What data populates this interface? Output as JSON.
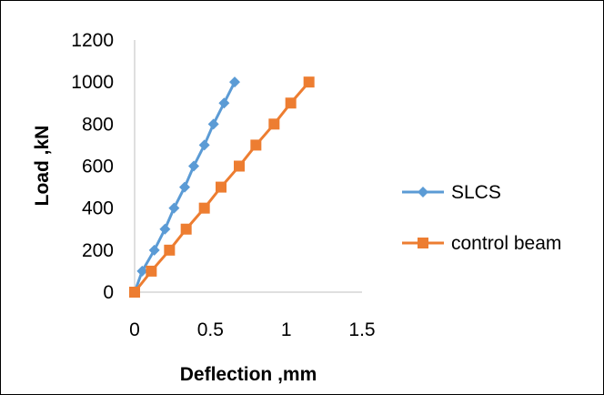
{
  "chart_data": {
    "type": "scatter",
    "xlabel": "Deflection ,mm",
    "ylabel": "Load ,kN",
    "xlim": [
      0,
      1.5
    ],
    "ylim": [
      0,
      1200
    ],
    "x_ticks": [
      "0",
      "0.5",
      "1",
      "1.5"
    ],
    "y_ticks": [
      "0",
      "200",
      "400",
      "600",
      "800",
      "1000",
      "1200"
    ],
    "grid": false,
    "legend_position": "right",
    "series": [
      {
        "name": "SLCS",
        "color": "#5B9BD5",
        "marker": "diamond",
        "x": [
          0,
          0.05,
          0.13,
          0.2,
          0.26,
          0.33,
          0.39,
          0.46,
          0.52,
          0.59,
          0.66
        ],
        "y": [
          0,
          100,
          200,
          300,
          400,
          500,
          600,
          700,
          800,
          900,
          1000
        ]
      },
      {
        "name": "control beam",
        "color": "#ED7D31",
        "marker": "square",
        "x": [
          0,
          0.11,
          0.23,
          0.34,
          0.46,
          0.57,
          0.69,
          0.8,
          0.92,
          1.03,
          1.15
        ],
        "y": [
          0,
          100,
          200,
          300,
          400,
          500,
          600,
          700,
          800,
          900,
          1000
        ]
      }
    ]
  }
}
